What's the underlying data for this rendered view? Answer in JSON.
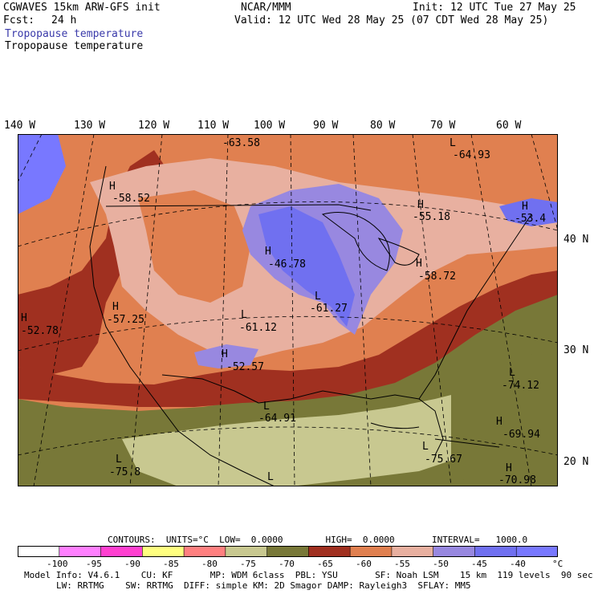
{
  "header": {
    "model_title": "CGWAVES 15km ARW-GFS init",
    "forecast_label": "Fcst:",
    "forecast_value": "24 h",
    "org": "NCAR/MMM",
    "init_time": "Init: 12 UTC Tue 27 May 25",
    "valid_time": "Valid: 12 UTC Wed 28 May 25 (07 CDT Wed 28 May 25)",
    "field_title_1": "Tropopause temperature",
    "field_title_2": "Tropopause temperature"
  },
  "map": {
    "longitude_labels": [
      "140 W",
      "130 W",
      "120 W",
      "110 W",
      "100 W",
      "90 W",
      "80 W",
      "70 W",
      "60 W"
    ],
    "latitude_labels": [
      "40 N",
      "30 N",
      "20 N"
    ],
    "markers": [
      {
        "type": "H",
        "value": "-58.52"
      },
      {
        "type": "",
        "value": "-63.58"
      },
      {
        "type": "L",
        "value": "-64.93"
      },
      {
        "type": "H",
        "value": "-55.18"
      },
      {
        "type": "H",
        "value": "-53.4"
      },
      {
        "type": "H",
        "value": "-46.78"
      },
      {
        "type": "H",
        "value": "-58.72"
      },
      {
        "type": "L",
        "value": "-61.27"
      },
      {
        "type": "H",
        "value": "-57.25"
      },
      {
        "type": "L",
        "value": "-61.12"
      },
      {
        "type": "H",
        "value": "-52.78"
      },
      {
        "type": "H",
        "value": "-52.57"
      },
      {
        "type": "L",
        "value": "-64.91"
      },
      {
        "type": "L",
        "value": "-74.12"
      },
      {
        "type": "H",
        "value": "-69.94"
      },
      {
        "type": "L",
        "value": "-75.8"
      },
      {
        "type": "L",
        "value": "-75.67"
      },
      {
        "type": "H",
        "value": "-70.98"
      },
      {
        "type": "L",
        "value": ""
      }
    ]
  },
  "legend": {
    "contours_line": "CONTOURS:  UNITS=°C  LOW=  0.0000        HIGH=  0.0000       INTERVAL=   1000.0",
    "bin_colors": [
      "#ffffff",
      "#ff80ff",
      "#ff40d0",
      "#ffff80",
      "#ff8080",
      "#c8c890",
      "#787838",
      "#a03020",
      "#e08050",
      "#e8b0a0",
      "#9888e0",
      "#7070f0",
      "#7878ff"
    ],
    "tick_labels": [
      "-100",
      "-95",
      "-90",
      "-85",
      "-80",
      "-75",
      "-70",
      "-65",
      "-60",
      "-55",
      "-50",
      "-45",
      "-40",
      "°C"
    ]
  },
  "footer": {
    "line1": "Model Info: V4.6.1    CU: KF       MP: WDM 6class  PBL: YSU       SF: Noah LSM    15 km  119 levels  90 sec",
    "line2": "LW: RRTMG    SW: RRTMG  DIFF: simple KM: 2D Smagor DAMP: Rayleigh3  SFLAY: MM5"
  }
}
